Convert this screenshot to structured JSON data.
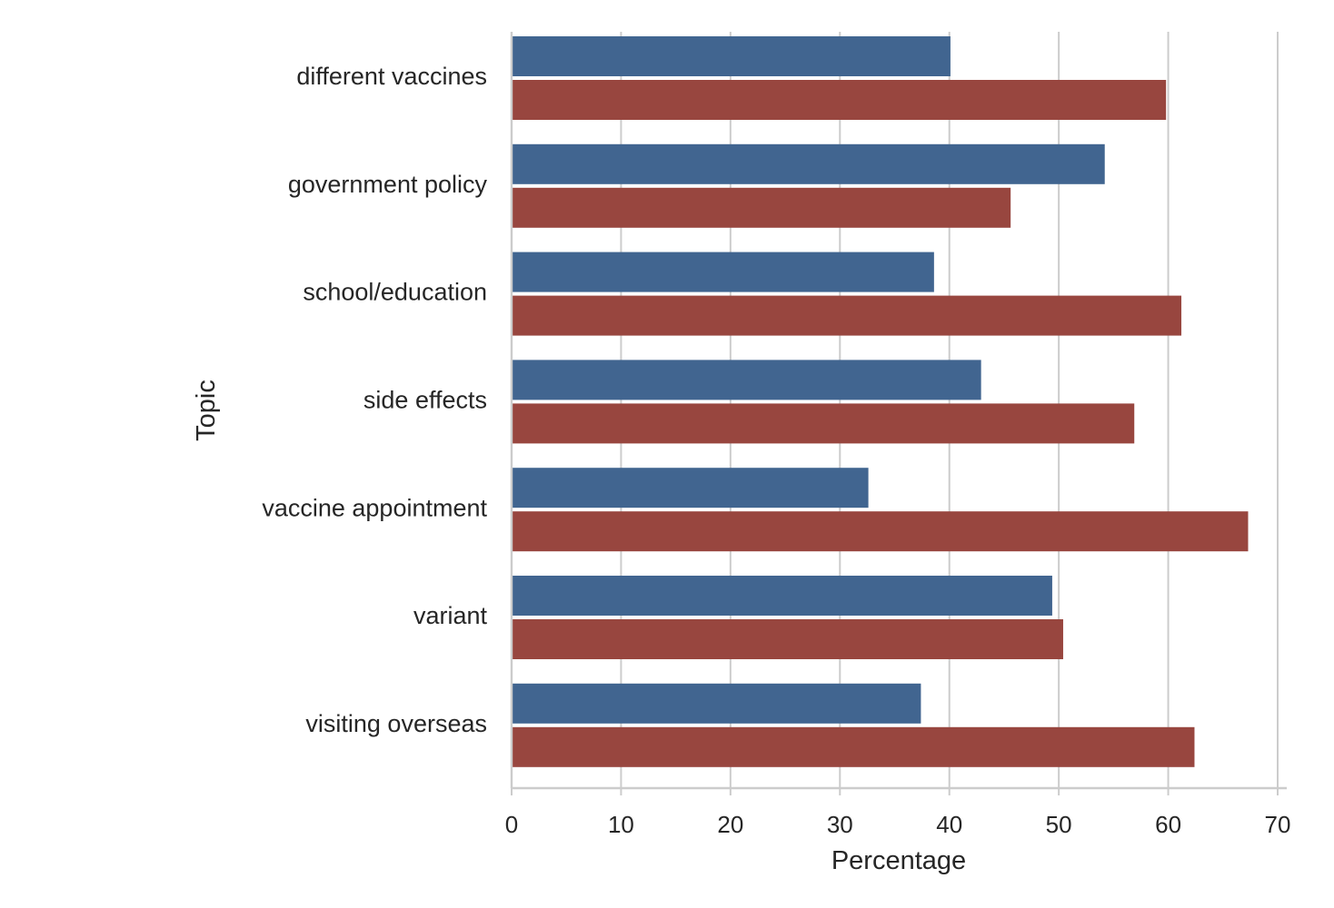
{
  "chart_data": {
    "type": "bar",
    "orientation": "horizontal",
    "xlabel": "Percentage",
    "ylabel": "Topic",
    "xlim": [
      0,
      70
    ],
    "xticks": [
      0,
      10,
      20,
      30,
      40,
      50,
      60,
      70
    ],
    "grid": "vertical",
    "legend": "none",
    "categories": [
      "different vaccines",
      "government policy",
      "school/education",
      "side effects",
      "vaccine appointment",
      "variant",
      "visiting overseas"
    ],
    "series": [
      {
        "color": "#416590",
        "values": [
          40.1,
          54.2,
          38.6,
          42.9,
          32.6,
          49.4,
          37.4
        ]
      },
      {
        "color": "#98463f",
        "values": [
          59.8,
          45.6,
          61.2,
          56.9,
          67.3,
          50.4,
          62.4
        ]
      }
    ]
  }
}
